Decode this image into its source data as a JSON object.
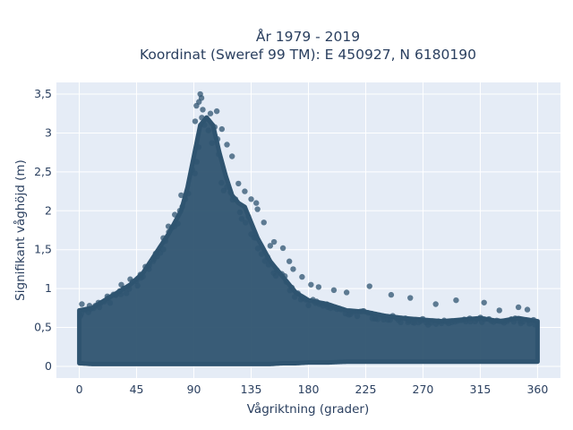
{
  "chart_data": {
    "type": "scatter",
    "title": [
      "År 1979 - 2019",
      "Koordinat (Sweref 99 TM): E 450927, N 6180190"
    ],
    "xlabel": "Vågriktning (grader)",
    "ylabel": "Signifikant våghöjd (m)",
    "xlim": [
      -18,
      378
    ],
    "ylim": [
      -0.15,
      3.65
    ],
    "xticks": [
      0,
      45,
      90,
      135,
      180,
      225,
      270,
      315,
      360
    ],
    "xtick_labels": [
      "0",
      "45",
      "90",
      "135",
      "180",
      "225",
      "270",
      "315",
      "360"
    ],
    "yticks": [
      0,
      0.5,
      1,
      1.5,
      2,
      2.5,
      3,
      3.5
    ],
    "ytick_labels": [
      "0",
      "0,5",
      "1",
      "1,5",
      "2",
      "2,5",
      "3",
      "3,5"
    ],
    "grid": true,
    "marker_color": "#2f5470",
    "background_color": "#e5ecf6",
    "envelope": {
      "x": [
        0,
        10,
        20,
        30,
        40,
        50,
        60,
        70,
        80,
        85,
        90,
        95,
        100,
        105,
        110,
        115,
        120,
        125,
        130,
        135,
        140,
        150,
        160,
        170,
        180,
        195,
        210,
        225,
        240,
        255,
        270,
        285,
        300,
        315,
        330,
        345,
        360
      ],
      "upper": [
        0.72,
        0.75,
        0.85,
        0.95,
        1.05,
        1.2,
        1.45,
        1.7,
        2.0,
        2.3,
        2.7,
        3.1,
        3.2,
        3.1,
        2.75,
        2.45,
        2.2,
        2.1,
        2.05,
        1.85,
        1.65,
        1.35,
        1.15,
        0.95,
        0.85,
        0.8,
        0.72,
        0.7,
        0.65,
        0.62,
        0.6,
        0.58,
        0.6,
        0.62,
        0.58,
        0.62,
        0.58
      ],
      "lower": [
        0.04,
        0.03,
        0.03,
        0.03,
        0.03,
        0.03,
        0.03,
        0.03,
        0.03,
        0.03,
        0.03,
        0.03,
        0.03,
        0.03,
        0.03,
        0.03,
        0.03,
        0.03,
        0.03,
        0.03,
        0.03,
        0.03,
        0.04,
        0.04,
        0.05,
        0.05,
        0.06,
        0.06,
        0.06,
        0.06,
        0.06,
        0.06,
        0.06,
        0.06,
        0.06,
        0.06,
        0.06
      ]
    },
    "outliers": [
      {
        "x": 95,
        "y": 3.5
      },
      {
        "x": 96,
        "y": 3.45
      },
      {
        "x": 94,
        "y": 3.4
      },
      {
        "x": 92,
        "y": 3.35
      },
      {
        "x": 97,
        "y": 3.3
      },
      {
        "x": 103,
        "y": 3.25
      },
      {
        "x": 108,
        "y": 3.28
      },
      {
        "x": 91,
        "y": 3.15
      },
      {
        "x": 112,
        "y": 3.05
      },
      {
        "x": 116,
        "y": 2.85
      },
      {
        "x": 120,
        "y": 2.7
      },
      {
        "x": 125,
        "y": 2.35
      },
      {
        "x": 130,
        "y": 2.25
      },
      {
        "x": 135,
        "y": 2.15
      },
      {
        "x": 140,
        "y": 2.02
      },
      {
        "x": 139,
        "y": 2.1
      },
      {
        "x": 145,
        "y": 1.85
      },
      {
        "x": 150,
        "y": 1.55
      },
      {
        "x": 153,
        "y": 1.6
      },
      {
        "x": 160,
        "y": 1.52
      },
      {
        "x": 165,
        "y": 1.35
      },
      {
        "x": 168,
        "y": 1.25
      },
      {
        "x": 175,
        "y": 1.15
      },
      {
        "x": 182,
        "y": 1.05
      },
      {
        "x": 188,
        "y": 1.02
      },
      {
        "x": 200,
        "y": 0.98
      },
      {
        "x": 210,
        "y": 0.95
      },
      {
        "x": 228,
        "y": 1.03
      },
      {
        "x": 245,
        "y": 0.92
      },
      {
        "x": 260,
        "y": 0.88
      },
      {
        "x": 280,
        "y": 0.8
      },
      {
        "x": 296,
        "y": 0.85
      },
      {
        "x": 318,
        "y": 0.82
      },
      {
        "x": 330,
        "y": 0.72
      },
      {
        "x": 345,
        "y": 0.76
      },
      {
        "x": 352,
        "y": 0.73
      },
      {
        "x": 80,
        "y": 2.2
      },
      {
        "x": 75,
        "y": 1.95
      },
      {
        "x": 70,
        "y": 1.8
      },
      {
        "x": 66,
        "y": 1.65
      },
      {
        "x": 60,
        "y": 1.45
      },
      {
        "x": 55,
        "y": 1.3
      },
      {
        "x": 48,
        "y": 1.18
      },
      {
        "x": 40,
        "y": 1.12
      },
      {
        "x": 33,
        "y": 1.05
      },
      {
        "x": 28,
        "y": 0.92
      },
      {
        "x": 22,
        "y": 0.9
      },
      {
        "x": 15,
        "y": 0.82
      },
      {
        "x": 8,
        "y": 0.78
      },
      {
        "x": 2,
        "y": 0.8
      }
    ]
  }
}
